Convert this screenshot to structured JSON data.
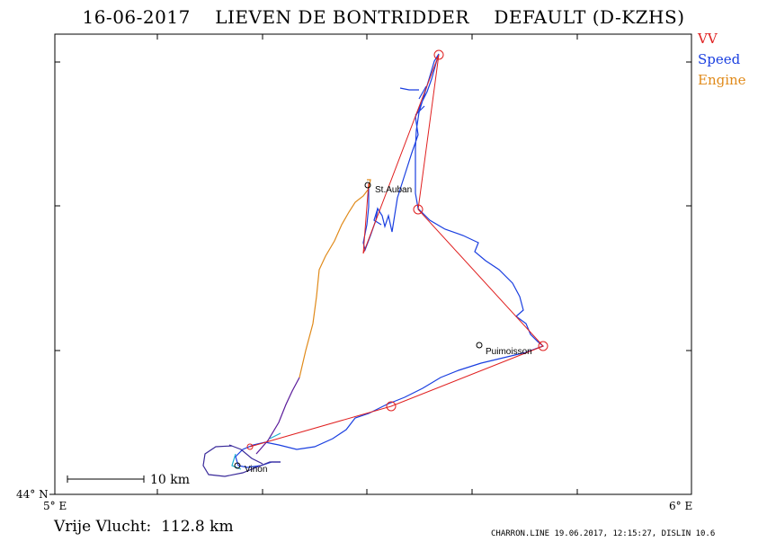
{
  "title": "16-06-2017    LIEVEN DE BONTRIDDER    DEFAULT (D-KZHS)",
  "legend": [
    {
      "label": "VV",
      "color": "#e02020"
    },
    {
      "label": "Speed",
      "color": "#1a3fe0"
    },
    {
      "label": "Engine",
      "color": "#e08a1a"
    }
  ],
  "axes": {
    "y_label": "44° N",
    "x_left": "5° E",
    "x_right": "6° E"
  },
  "scale_bar": "10 km",
  "places": [
    "St.Auban",
    "Puimoisson",
    "Vinon"
  ],
  "footer": {
    "distance": "Vrije Vlucht:  112.8 km",
    "info": "CHARRON.LINE 19.06.2017, 12:15:27, DISLIN 10.6"
  }
}
